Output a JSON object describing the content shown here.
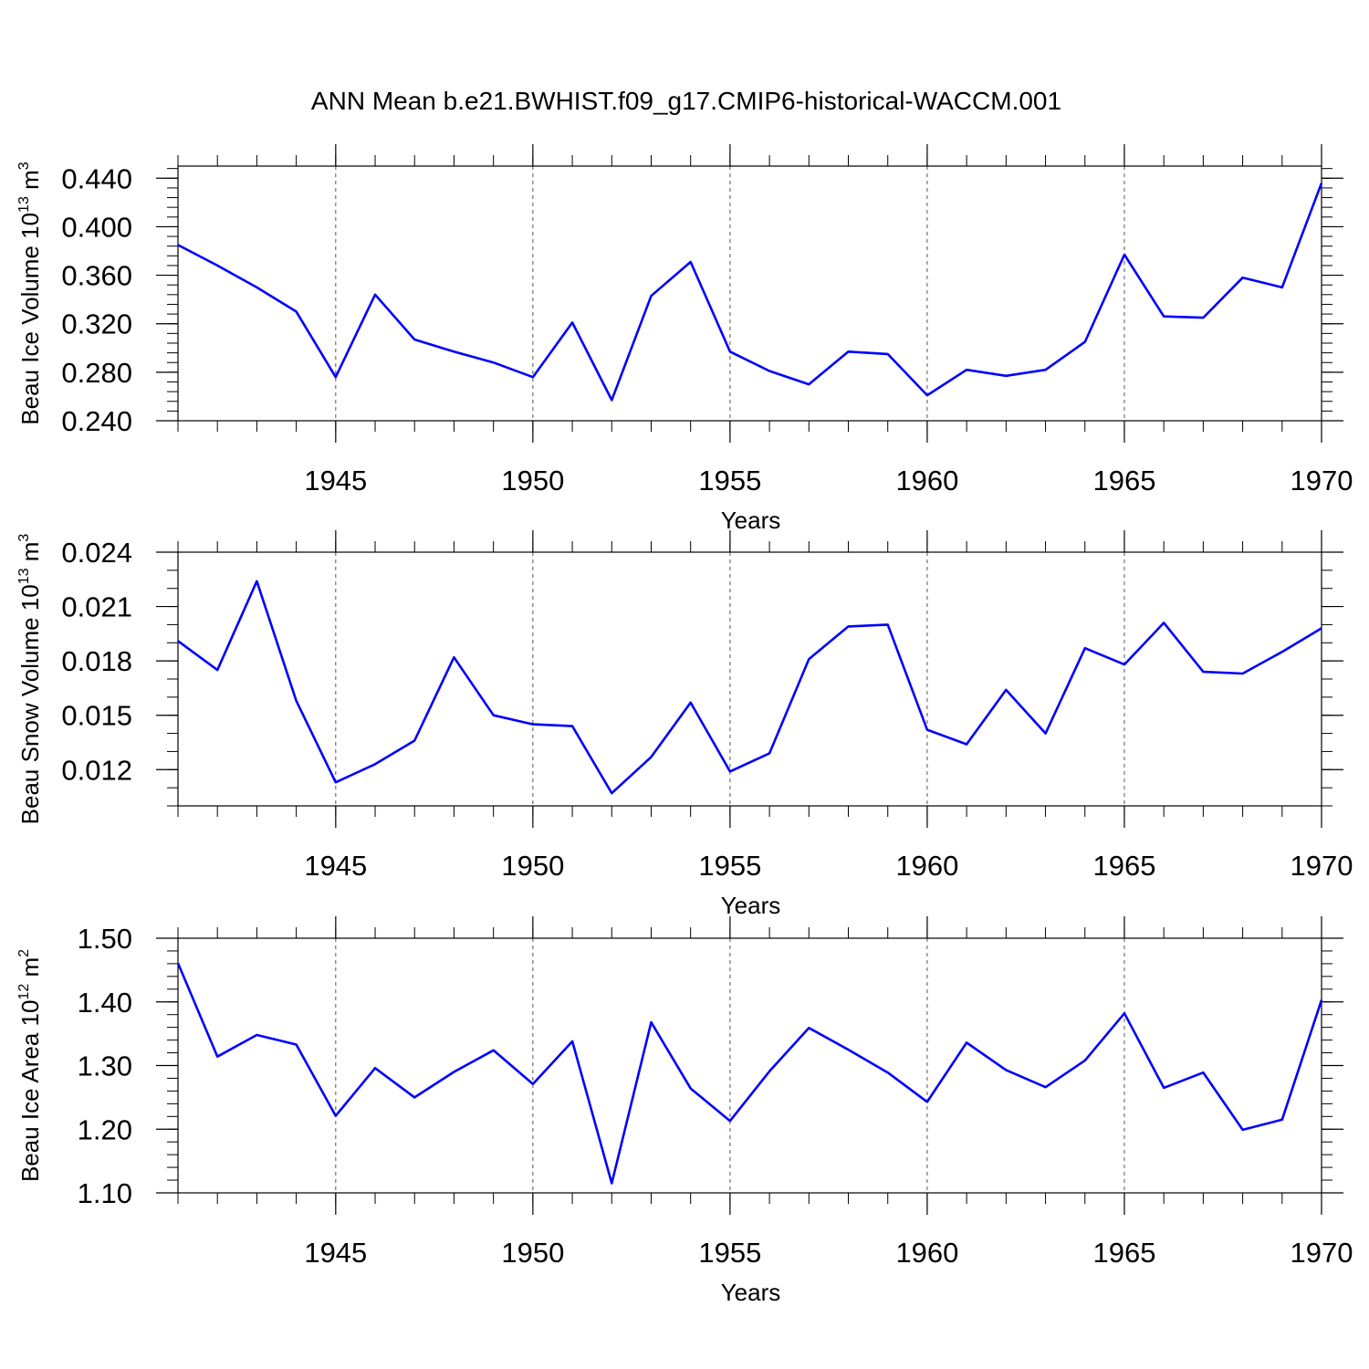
{
  "title": "ANN Mean b.e21.BWHIST.f09_g17.CMIP6-historical-WACCM.001",
  "colors": {
    "line": "#0000ff",
    "axis": "#000000",
    "grid": "#555555"
  },
  "chart_data": [
    {
      "type": "line",
      "xlabel": "Years",
      "ylabel": {
        "text": "Beau Ice Volume 10",
        "sup1": "13",
        "mid": " m",
        "sup2": "3"
      },
      "xlim": [
        1941,
        1970
      ],
      "ylim": [
        0.24,
        0.45
      ],
      "xticks": [
        1945,
        1950,
        1955,
        1960,
        1965,
        1970
      ],
      "xtick_labels": [
        "1945",
        "1950",
        "1955",
        "1960",
        "1965",
        "1970"
      ],
      "yticks": [
        0.24,
        0.28,
        0.32,
        0.36,
        0.4,
        0.44
      ],
      "ytick_labels": [
        "0.240",
        "0.280",
        "0.320",
        "0.360",
        "0.400",
        "0.440"
      ],
      "yminor_step": 0.008,
      "grid": "vertical dashed at major x ticks",
      "x": [
        1941,
        1942,
        1943,
        1944,
        1945,
        1946,
        1947,
        1948,
        1949,
        1950,
        1951,
        1952,
        1953,
        1954,
        1955,
        1956,
        1957,
        1958,
        1959,
        1960,
        1961,
        1962,
        1963,
        1964,
        1965,
        1966,
        1967,
        1968,
        1969,
        1970
      ],
      "series": [
        {
          "values": [
            0.385,
            0.368,
            0.35,
            0.33,
            0.276,
            0.344,
            0.307,
            0.297,
            0.288,
            0.276,
            0.321,
            0.257,
            0.343,
            0.371,
            0.297,
            0.281,
            0.27,
            0.297,
            0.295,
            0.261,
            0.282,
            0.277,
            0.282,
            0.305,
            0.377,
            0.326,
            0.325,
            0.358,
            0.35,
            0.436
          ]
        }
      ]
    },
    {
      "type": "line",
      "xlabel": "Years",
      "ylabel": {
        "text": "Beau Snow Volume 10",
        "sup1": "13",
        "mid": " m",
        "sup2": "3"
      },
      "xlim": [
        1941,
        1970
      ],
      "ylim": [
        0.01,
        0.024
      ],
      "xticks": [
        1945,
        1950,
        1955,
        1960,
        1965,
        1970
      ],
      "xtick_labels": [
        "1945",
        "1950",
        "1955",
        "1960",
        "1965",
        "1970"
      ],
      "yticks": [
        0.012,
        0.015,
        0.018,
        0.021,
        0.024
      ],
      "ytick_labels": [
        "0.012",
        "0.015",
        "0.018",
        "0.021",
        "0.024"
      ],
      "yminor_step": 0.001,
      "grid": "vertical dashed at major x ticks",
      "x": [
        1941,
        1942,
        1943,
        1944,
        1945,
        1946,
        1947,
        1948,
        1949,
        1950,
        1951,
        1952,
        1953,
        1954,
        1955,
        1956,
        1957,
        1958,
        1959,
        1960,
        1961,
        1962,
        1963,
        1964,
        1965,
        1966,
        1967,
        1968,
        1969,
        1970
      ],
      "series": [
        {
          "values": [
            0.0191,
            0.0175,
            0.0224,
            0.0158,
            0.0113,
            0.0123,
            0.0136,
            0.0182,
            0.015,
            0.0145,
            0.0144,
            0.0107,
            0.0127,
            0.0157,
            0.0119,
            0.0129,
            0.0181,
            0.0199,
            0.02,
            0.0142,
            0.0134,
            0.0164,
            0.014,
            0.0187,
            0.0178,
            0.0201,
            0.0174,
            0.0173,
            0.0185,
            0.0198
          ]
        }
      ]
    },
    {
      "type": "line",
      "xlabel": "Years",
      "ylabel": {
        "text": "Beau Ice Area 10",
        "sup1": "12",
        "mid": " m",
        "sup2": "2"
      },
      "xlim": [
        1941,
        1970
      ],
      "ylim": [
        1.1,
        1.5
      ],
      "xticks": [
        1945,
        1950,
        1955,
        1960,
        1965,
        1970
      ],
      "xtick_labels": [
        "1945",
        "1950",
        "1955",
        "1960",
        "1965",
        "1970"
      ],
      "yticks": [
        1.1,
        1.2,
        1.3,
        1.4,
        1.5
      ],
      "ytick_labels": [
        "1.10",
        "1.20",
        "1.30",
        "1.40",
        "1.50"
      ],
      "yminor_step": 0.02,
      "grid": "vertical dashed at major x ticks",
      "x": [
        1941,
        1942,
        1943,
        1944,
        1945,
        1946,
        1947,
        1948,
        1949,
        1950,
        1951,
        1952,
        1953,
        1954,
        1955,
        1956,
        1957,
        1958,
        1959,
        1960,
        1961,
        1962,
        1963,
        1964,
        1965,
        1966,
        1967,
        1968,
        1969,
        1970
      ],
      "series": [
        {
          "values": [
            1.461,
            1.314,
            1.348,
            1.333,
            1.221,
            1.296,
            1.25,
            1.29,
            1.324,
            1.271,
            1.338,
            1.115,
            1.368,
            1.264,
            1.213,
            1.291,
            1.359,
            1.325,
            1.289,
            1.243,
            1.336,
            1.293,
            1.266,
            1.308,
            1.382,
            1.265,
            1.289,
            1.199,
            1.215,
            1.403
          ]
        }
      ]
    }
  ]
}
